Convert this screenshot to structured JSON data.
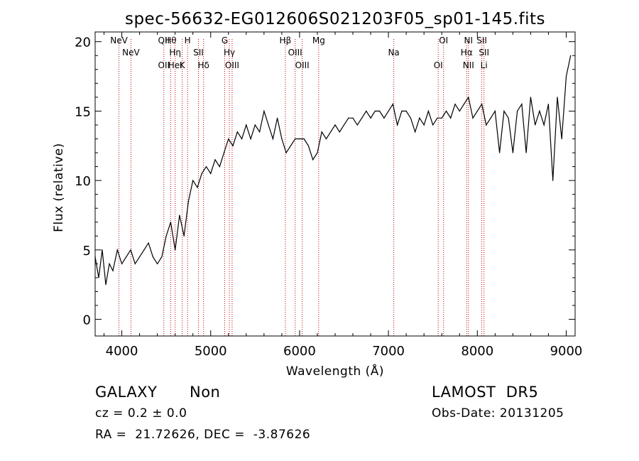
{
  "chart_data": {
    "type": "line",
    "title": "spec-56632-EG012606S021203F05_sp01-145.fits",
    "xlabel": "Wavelength (Å)",
    "ylabel": "Flux (relative)",
    "xlim": [
      3700,
      9100
    ],
    "ylim": [
      -1.2,
      20.7
    ],
    "xticks": [
      4000,
      5000,
      6000,
      7000,
      8000,
      9000
    ],
    "yticks": [
      0,
      5,
      10,
      15,
      20
    ],
    "grid": false,
    "series": [
      {
        "x": [
          3700,
          3740,
          3780,
          3820,
          3860,
          3900,
          3950,
          4000,
          4050,
          4100,
          4150,
          4200,
          4250,
          4300,
          4350,
          4400,
          4450,
          4500,
          4550,
          4600,
          4650,
          4700,
          4750,
          4800,
          4850,
          4900,
          4950,
          5000,
          5050,
          5100,
          5150,
          5200,
          5250,
          5300,
          5350,
          5400,
          5450,
          5500,
          5550,
          5600,
          5650,
          5700,
          5750,
          5800,
          5850,
          5900,
          5950,
          6000,
          6050,
          6100,
          6150,
          6200,
          6250,
          6300,
          6350,
          6400,
          6450,
          6500,
          6550,
          6600,
          6650,
          6700,
          6750,
          6800,
          6850,
          6900,
          6950,
          7000,
          7050,
          7100,
          7150,
          7200,
          7250,
          7300,
          7350,
          7400,
          7450,
          7500,
          7550,
          7600,
          7650,
          7700,
          7750,
          7800,
          7850,
          7900,
          7950,
          8000,
          8050,
          8100,
          8150,
          8200,
          8250,
          8300,
          8350,
          8400,
          8450,
          8500,
          8550,
          8600,
          8650,
          8700,
          8750,
          8800,
          8850,
          8900,
          8950,
          9000,
          9050
        ],
        "y": [
          4.5,
          3.0,
          5.0,
          2.5,
          4.0,
          3.5,
          5.0,
          4.0,
          4.5,
          5.0,
          4.0,
          4.5,
          5.0,
          5.5,
          4.5,
          4.0,
          4.5,
          6.0,
          7.0,
          5.0,
          7.5,
          6.0,
          8.5,
          10.0,
          9.5,
          10.5,
          11.0,
          10.5,
          11.5,
          11.0,
          12.0,
          13.0,
          12.5,
          13.5,
          13.0,
          14.0,
          13.0,
          14.0,
          13.5,
          15.0,
          14.0,
          13.0,
          14.5,
          13.0,
          12.0,
          12.5,
          13.0,
          13.0,
          13.0,
          12.5,
          11.5,
          12.0,
          13.5,
          13.0,
          13.5,
          14.0,
          13.5,
          14.0,
          14.5,
          14.5,
          14.0,
          14.5,
          15.0,
          14.5,
          15.0,
          15.0,
          14.5,
          15.0,
          15.5,
          14.0,
          15.0,
          15.0,
          14.5,
          13.5,
          14.5,
          14.0,
          15.0,
          14.0,
          14.5,
          14.5,
          15.0,
          14.5,
          15.5,
          15.0,
          15.5,
          16.0,
          14.5,
          15.0,
          15.5,
          14.0,
          14.5,
          15.0,
          12.0,
          15.0,
          14.5,
          12.0,
          15.0,
          15.5,
          12.0,
          16.0,
          14.0,
          15.0,
          14.0,
          15.5,
          10.0,
          16.0,
          13.0,
          17.5,
          19.0
        ]
      }
    ],
    "lines": [
      {
        "x": 3968,
        "labels": [
          "NeV"
        ]
      },
      {
        "x": 4103,
        "labels": [
          "NeV"
        ]
      },
      {
        "x": 4473,
        "labels": [
          "OII",
          "QII"
        ]
      },
      {
        "x": 4550,
        "labels": [
          "Hθ"
        ]
      },
      {
        "x": 4600,
        "labels": [
          "Hη",
          "HeI"
        ]
      },
      {
        "x": 4680,
        "labels": [
          "K"
        ]
      },
      {
        "x": 4740,
        "labels": [
          "H"
        ]
      },
      {
        "x": 4862,
        "labels": [
          "SII"
        ]
      },
      {
        "x": 4920,
        "labels": [
          "Hδ"
        ]
      },
      {
        "x": 5158,
        "labels": [
          "G"
        ]
      },
      {
        "x": 5210,
        "labels": [
          "Hγ"
        ]
      },
      {
        "x": 5241,
        "labels": [
          "OIII"
        ]
      },
      {
        "x": 5840,
        "labels": [
          "Hβ"
        ]
      },
      {
        "x": 5950,
        "labels": [
          "OIII"
        ]
      },
      {
        "x": 6030,
        "labels": [
          "OIII"
        ]
      },
      {
        "x": 6215,
        "labels": [
          "Mg"
        ]
      },
      {
        "x": 7060,
        "labels": [
          "Na"
        ]
      },
      {
        "x": 7560,
        "labels": [
          "OI"
        ]
      },
      {
        "x": 7620,
        "labels": [
          "OI"
        ]
      },
      {
        "x": 7880,
        "labels": [
          "Hα"
        ]
      },
      {
        "x": 7900,
        "labels": [
          "NII",
          "NI"
        ]
      },
      {
        "x": 8050,
        "labels": [
          "SII"
        ]
      },
      {
        "x": 8075,
        "labels": [
          "SII",
          "Li"
        ]
      }
    ]
  },
  "info": {
    "class": "GALAXY",
    "subclass": "Non",
    "survey": "LAMOST  DR5",
    "cz": "cz = 0.2 ± 0.0",
    "obs_date": "Obs-Date: 20131205",
    "radec": "RA =  21.72626, DEC =  -3.87626"
  }
}
